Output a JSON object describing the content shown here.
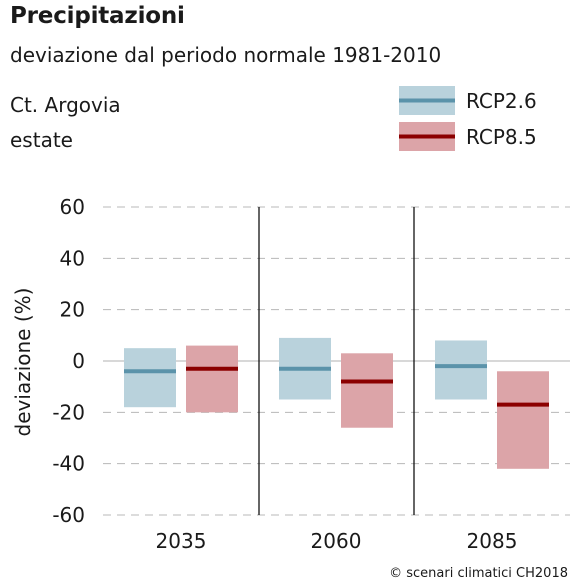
{
  "header": {
    "title": "Precipitazioni",
    "subtitle": "deviazione dal periodo normale 1981-2010",
    "region": "Ct. Argovia",
    "season": "estate"
  },
  "footer": {
    "copyright": "© scenari climatici CH2018"
  },
  "chart_data": {
    "type": "bar",
    "categories": [
      "2035",
      "2060",
      "2085"
    ],
    "ylabel": "deviazione (%)",
    "ylim": [
      -60,
      60
    ],
    "yticks": [
      60,
      40,
      20,
      0,
      -20,
      -40,
      -60
    ],
    "ytick_labels": [
      "60",
      "40",
      "20",
      "0",
      "-20",
      "-40",
      "-60"
    ],
    "grid": "dashed horizontal",
    "legend_position": "top-right",
    "series": [
      {
        "name": "RCP2.6",
        "fill_color": "#b9d2dc",
        "line_color": "#5b93aa",
        "low": [
          -18,
          -15,
          -15
        ],
        "median": [
          -4,
          -3,
          -2
        ],
        "high": [
          5,
          9,
          8
        ]
      },
      {
        "name": "RCP8.5",
        "fill_color": "#dca4a8",
        "line_color": "#8b0000",
        "low": [
          -20,
          -26,
          -42
        ],
        "median": [
          -3,
          -8,
          -17
        ],
        "high": [
          6,
          3,
          -4
        ]
      }
    ]
  }
}
